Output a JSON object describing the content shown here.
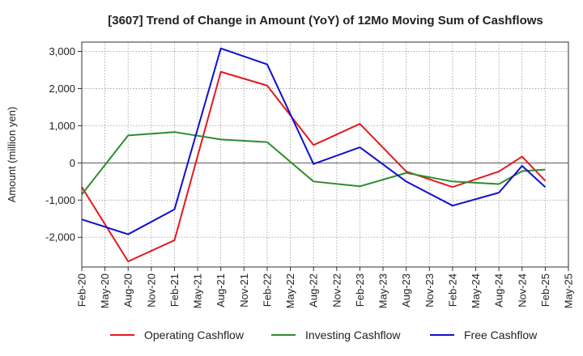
{
  "chart_data": {
    "type": "line",
    "title": "[3607]  Trend of Change in Amount (YoY) of 12Mo Moving Sum of Cashflows",
    "xlabel": "",
    "ylabel": "Amount (million yen)",
    "ylim": [
      -2800,
      3250
    ],
    "yticks": [
      3000,
      2000,
      1000,
      0,
      -1000,
      -2000
    ],
    "ytick_labels": [
      "3,000",
      "2,000",
      "1,000",
      "0",
      "-1,000",
      "-2,000"
    ],
    "categories": [
      "Feb-20",
      "May-20",
      "Aug-20",
      "Nov-20",
      "Feb-21",
      "May-21",
      "Aug-21",
      "Nov-21",
      "Feb-22",
      "May-22",
      "Aug-22",
      "Nov-22",
      "Feb-23",
      "May-23",
      "Aug-23",
      "Nov-23",
      "Feb-24",
      "May-24",
      "Aug-24",
      "Nov-24",
      "Feb-25",
      "May-25"
    ],
    "grid": true,
    "legend_position": "bottom",
    "series": [
      {
        "name": "Operating Cashflow",
        "color": "#e41a1c",
        "values": [
          -650,
          null,
          -2650,
          null,
          -2080,
          null,
          2450,
          null,
          2080,
          null,
          480,
          null,
          1050,
          null,
          -230,
          null,
          -650,
          null,
          -230,
          170,
          -480,
          null
        ]
      },
      {
        "name": "Investing Cashflow",
        "color": "#2e8b2e",
        "values": [
          -850,
          null,
          740,
          null,
          830,
          null,
          630,
          null,
          560,
          null,
          -500,
          null,
          -630,
          null,
          -270,
          null,
          -500,
          null,
          -570,
          -220,
          -180,
          null
        ]
      },
      {
        "name": "Free Cashflow",
        "color": "#1010cc",
        "values": [
          -1520,
          null,
          -1920,
          null,
          -1250,
          null,
          3080,
          null,
          2650,
          null,
          -30,
          null,
          420,
          null,
          -500,
          null,
          -1150,
          null,
          -800,
          -80,
          -650,
          null
        ]
      }
    ]
  }
}
